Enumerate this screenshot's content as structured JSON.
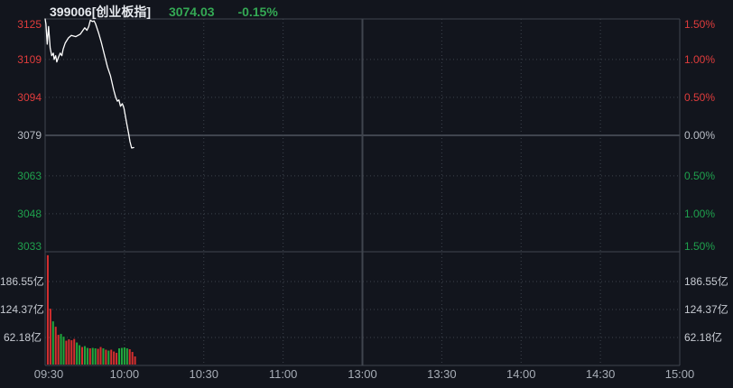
{
  "header": {
    "symbol": "399006[创业板指]",
    "price": "3074.03",
    "change_pct": "-0.15%"
  },
  "colors": {
    "up": "#e03c3c",
    "down": "#1fa04d",
    "flat": "#b9bec6",
    "vol_label": "#c7cbd2",
    "time_label": "#a7adb6",
    "header_green": "#34a854",
    "line": "#ffffff",
    "bar_up": "#d62f2f",
    "bar_down": "#21a83c",
    "grid_dotted": "#3d434d",
    "grid_solid": "#40454e",
    "background": "#12151d"
  },
  "chart_data": {
    "type": "line",
    "title": "399006[创业板指] intraday price and volume",
    "legend_position": "none",
    "grid": true,
    "price_axis": {
      "range": [
        3033,
        3125
      ],
      "ticks": [
        {
          "text": "3125",
          "value": 3125,
          "color": "up"
        },
        {
          "text": "3109",
          "value": 3109,
          "color": "up"
        },
        {
          "text": "3094",
          "value": 3094,
          "color": "up"
        },
        {
          "text": "3079",
          "value": 3079,
          "color": "flat"
        },
        {
          "text": "3063",
          "value": 3063,
          "color": "down"
        },
        {
          "text": "3048",
          "value": 3048,
          "color": "down"
        },
        {
          "text": "3033",
          "value": 3033,
          "color": "down"
        }
      ]
    },
    "percent_axis": {
      "range_pct": [
        -1.5,
        1.5
      ],
      "ticks": [
        {
          "text": "1.50%",
          "color": "up"
        },
        {
          "text": "1.00%",
          "color": "up"
        },
        {
          "text": "0.50%",
          "color": "up"
        },
        {
          "text": "0.00%",
          "color": "flat"
        },
        {
          "text": "0.50%",
          "color": "down"
        },
        {
          "text": "1.00%",
          "color": "down"
        },
        {
          "text": "1.50%",
          "color": "down"
        }
      ]
    },
    "volume_axis": {
      "max": 248.72,
      "unit": "亿",
      "ticks": [
        {
          "text": "186.55亿",
          "value": 186.55
        },
        {
          "text": "124.37亿",
          "value": 124.37
        },
        {
          "text": "62.18亿",
          "value": 62.18
        }
      ]
    },
    "time_axis": {
      "ticks": [
        "09:30",
        "10:00",
        "10:30",
        "11:00",
        "13:00",
        "13:30",
        "14:00",
        "14:30",
        "15:00"
      ],
      "session_minutes": 240,
      "solid_tick_index": 4
    },
    "price_points": [
      [
        0,
        3125.0
      ],
      [
        0.3,
        3123.0
      ],
      [
        0.8,
        3115.0
      ],
      [
        1.3,
        3122.0
      ],
      [
        1.9,
        3113.5
      ],
      [
        2.5,
        3110.5
      ],
      [
        3.1,
        3111.5
      ],
      [
        3.4,
        3109.0
      ],
      [
        4.0,
        3110.5
      ],
      [
        4.4,
        3108.0
      ],
      [
        5.1,
        3110.0
      ],
      [
        5.7,
        3111.5
      ],
      [
        6.3,
        3110.5
      ],
      [
        6.8,
        3113.0
      ],
      [
        7.6,
        3115.5
      ],
      [
        8.8,
        3117.5
      ],
      [
        9.9,
        3118.5
      ],
      [
        11.6,
        3118.0
      ],
      [
        13.3,
        3119.0
      ],
      [
        15.0,
        3121.5
      ],
      [
        15.8,
        3120.5
      ],
      [
        16.5,
        3122.0
      ],
      [
        17.1,
        3124.5
      ],
      [
        17.9,
        3124.0
      ],
      [
        18.5,
        3124.2
      ],
      [
        19.0,
        3123.2
      ],
      [
        20.2,
        3119.5
      ],
      [
        21.3,
        3115.5
      ],
      [
        22.5,
        3110.5
      ],
      [
        23.6,
        3106.0
      ],
      [
        24.7,
        3102.5
      ],
      [
        25.9,
        3097.0
      ],
      [
        26.7,
        3094.0
      ],
      [
        27.3,
        3092.5
      ],
      [
        27.9,
        3093.0
      ],
      [
        28.5,
        3090.5
      ],
      [
        29.2,
        3091.5
      ],
      [
        29.8,
        3089.8
      ],
      [
        30.8,
        3084.0
      ],
      [
        31.6,
        3079.5
      ],
      [
        32.1,
        3076.5
      ],
      [
        32.7,
        3074.0
      ],
      [
        33.5,
        3074.2
      ]
    ],
    "volume_bars": [
      {
        "m": 1,
        "v": 245,
        "dir": "up"
      },
      {
        "m": 2,
        "v": 126,
        "dir": "up"
      },
      {
        "m": 3,
        "v": 98,
        "dir": "down"
      },
      {
        "m": 4,
        "v": 86,
        "dir": "up"
      },
      {
        "m": 5,
        "v": 68,
        "dir": "up"
      },
      {
        "m": 6,
        "v": 70,
        "dir": "down"
      },
      {
        "m": 7,
        "v": 64,
        "dir": "down"
      },
      {
        "m": 8,
        "v": 55,
        "dir": "up"
      },
      {
        "m": 9,
        "v": 58,
        "dir": "up"
      },
      {
        "m": 10,
        "v": 56,
        "dir": "up"
      },
      {
        "m": 11,
        "v": 59,
        "dir": "up"
      },
      {
        "m": 12,
        "v": 51,
        "dir": "down"
      },
      {
        "m": 13,
        "v": 45,
        "dir": "down"
      },
      {
        "m": 14,
        "v": 41,
        "dir": "up"
      },
      {
        "m": 15,
        "v": 43,
        "dir": "down"
      },
      {
        "m": 16,
        "v": 39,
        "dir": "down"
      },
      {
        "m": 17,
        "v": 38,
        "dir": "up"
      },
      {
        "m": 18,
        "v": 39,
        "dir": "down"
      },
      {
        "m": 19,
        "v": 38,
        "dir": "down"
      },
      {
        "m": 20,
        "v": 37,
        "dir": "up"
      },
      {
        "m": 21,
        "v": 41,
        "dir": "up"
      },
      {
        "m": 22,
        "v": 38,
        "dir": "down"
      },
      {
        "m": 23,
        "v": 35,
        "dir": "up"
      },
      {
        "m": 24,
        "v": 33,
        "dir": "down"
      },
      {
        "m": 25,
        "v": 35,
        "dir": "up"
      },
      {
        "m": 26,
        "v": 31,
        "dir": "up"
      },
      {
        "m": 27,
        "v": 28,
        "dir": "up"
      },
      {
        "m": 28,
        "v": 38,
        "dir": "down"
      },
      {
        "m": 29,
        "v": 39,
        "dir": "down"
      },
      {
        "m": 30,
        "v": 40,
        "dir": "down"
      },
      {
        "m": 31,
        "v": 38,
        "dir": "down"
      },
      {
        "m": 32,
        "v": 36,
        "dir": "up"
      },
      {
        "m": 33,
        "v": 30,
        "dir": "up"
      },
      {
        "m": 34,
        "v": 20,
        "dir": "up"
      }
    ]
  }
}
